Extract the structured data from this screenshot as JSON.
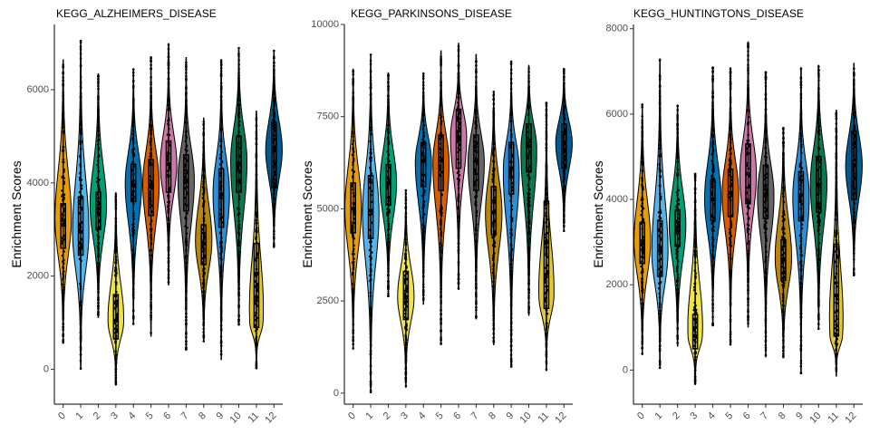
{
  "palette": [
    "#E69F00",
    "#56B4E9",
    "#009E73",
    "#F0E442",
    "#0072B2",
    "#D55E00",
    "#CC79A7",
    "#666666",
    "#B8860B",
    "#2B8FD6",
    "#0A7A55",
    "#E0C83A",
    "#005A8C"
  ],
  "chart_data": [
    {
      "type": "violin",
      "title": "KEGG_ALZHEIMERS_DISEASE",
      "xlabel": "",
      "ylabel": "Enrichment Scores",
      "categories": [
        "0",
        "1",
        "2",
        "3",
        "4",
        "5",
        "6",
        "7",
        "8",
        "9",
        "10",
        "11",
        "12"
      ],
      "ylim": [
        -750,
        7400
      ],
      "yticks": [
        0,
        2000,
        4000,
        6000
      ],
      "ytick_labels": [
        "0",
        "2000",
        "4000",
        "6000"
      ],
      "grid": false,
      "legend": "none",
      "series": [
        {
          "min": 550,
          "max": 6650,
          "q1": 2600,
          "median": 3100,
          "q3": 3550,
          "mode": 3200,
          "spread": 0.3
        },
        {
          "min": 0,
          "max": 7050,
          "q1": 2450,
          "median": 2950,
          "q3": 3700,
          "mode": 2900,
          "spread": 0.28
        },
        {
          "min": 1100,
          "max": 6350,
          "q1": 3000,
          "median": 3450,
          "q3": 3800,
          "mode": 3500,
          "spread": 0.3
        },
        {
          "min": -350,
          "max": 3800,
          "q1": 650,
          "median": 1050,
          "q3": 1600,
          "mode": 1000,
          "spread": 0.28
        },
        {
          "min": 950,
          "max": 6450,
          "q1": 3600,
          "median": 3950,
          "q3": 4400,
          "mode": 4000,
          "spread": 0.28
        },
        {
          "min": 700,
          "max": 6700,
          "q1": 3300,
          "median": 3950,
          "q3": 4500,
          "mode": 4000,
          "spread": 0.26
        },
        {
          "min": 1800,
          "max": 7000,
          "q1": 3800,
          "median": 4400,
          "q3": 4900,
          "mode": 4400,
          "spread": 0.26
        },
        {
          "min": 400,
          "max": 6700,
          "q1": 3400,
          "median": 4050,
          "q3": 4600,
          "mode": 4100,
          "spread": 0.26
        },
        {
          "min": 600,
          "max": 5400,
          "q1": 2250,
          "median": 2700,
          "q3": 3100,
          "mode": 2750,
          "spread": 0.3
        },
        {
          "min": 200,
          "max": 6650,
          "q1": 3050,
          "median": 3750,
          "q3": 4300,
          "mode": 3800,
          "spread": 0.26
        },
        {
          "min": 950,
          "max": 6900,
          "q1": 3800,
          "median": 4400,
          "q3": 5000,
          "mode": 4500,
          "spread": 0.3
        },
        {
          "min": 0,
          "max": 5550,
          "q1": 900,
          "median": 2050,
          "q3": 2700,
          "mode": 1000,
          "spread": 0.26
        },
        {
          "min": 2600,
          "max": 6850,
          "q1": 3900,
          "median": 4700,
          "q3": 5300,
          "mode": 4700,
          "spread": 0.3
        }
      ]
    },
    {
      "type": "violin",
      "title": "KEGG_PARKINSONS_DISEASE",
      "xlabel": "",
      "ylabel": "Enrichment Scores",
      "categories": [
        "0",
        "1",
        "2",
        "3",
        "4",
        "5",
        "6",
        "7",
        "8",
        "9",
        "10",
        "11",
        "12"
      ],
      "ylim": [
        -300,
        10000
      ],
      "yticks": [
        0,
        2500,
        5000,
        7500,
        10000
      ],
      "ytick_labels": [
        "0",
        "2500",
        "5000",
        "7500",
        "10000"
      ],
      "grid": false,
      "legend": "none",
      "series": [
        {
          "min": 1200,
          "max": 8800,
          "q1": 4350,
          "median": 5000,
          "q3": 5700,
          "mode": 5000,
          "spread": 0.3
        },
        {
          "min": 0,
          "max": 9200,
          "q1": 4200,
          "median": 4950,
          "q3": 5900,
          "mode": 4900,
          "spread": 0.28
        },
        {
          "min": 2600,
          "max": 8700,
          "q1": 5100,
          "median": 5700,
          "q3": 6200,
          "mode": 5700,
          "spread": 0.3
        },
        {
          "min": 150,
          "max": 5500,
          "q1": 2000,
          "median": 2600,
          "q3": 3300,
          "mode": 2600,
          "spread": 0.28
        },
        {
          "min": 2400,
          "max": 8700,
          "q1": 5600,
          "median": 6300,
          "q3": 6800,
          "mode": 6300,
          "spread": 0.28
        },
        {
          "min": 1300,
          "max": 9300,
          "q1": 5500,
          "median": 6300,
          "q3": 7000,
          "mode": 6300,
          "spread": 0.26
        },
        {
          "min": 2800,
          "max": 9500,
          "q1": 6100,
          "median": 6950,
          "q3": 7700,
          "mode": 7000,
          "spread": 0.26
        },
        {
          "min": 2000,
          "max": 9200,
          "q1": 5500,
          "median": 6300,
          "q3": 7000,
          "mode": 6300,
          "spread": 0.26
        },
        {
          "min": 1300,
          "max": 8200,
          "q1": 4300,
          "median": 4900,
          "q3": 5600,
          "mode": 4900,
          "spread": 0.3
        },
        {
          "min": 700,
          "max": 9000,
          "q1": 5400,
          "median": 6100,
          "q3": 6800,
          "mode": 6100,
          "spread": 0.26
        },
        {
          "min": 2100,
          "max": 8900,
          "q1": 6000,
          "median": 6700,
          "q3": 7300,
          "mode": 6700,
          "spread": 0.3
        },
        {
          "min": 600,
          "max": 7900,
          "q1": 2300,
          "median": 4100,
          "q3": 5200,
          "mode": 2600,
          "spread": 0.26
        },
        {
          "min": 4400,
          "max": 8800,
          "q1": 6100,
          "median": 6800,
          "q3": 7300,
          "mode": 6800,
          "spread": 0.3
        }
      ]
    },
    {
      "type": "violin",
      "title": "KEGG_HUNTINGTONS_DISEASE",
      "xlabel": "",
      "ylabel": "Enrichment Scores",
      "categories": [
        "0",
        "1",
        "2",
        "3",
        "4",
        "5",
        "6",
        "7",
        "8",
        "9",
        "10",
        "11",
        "12"
      ],
      "ylim": [
        -800,
        8100
      ],
      "yticks": [
        0,
        2000,
        4000,
        6000,
        8000
      ],
      "ytick_labels": [
        "0",
        "2000",
        "4000",
        "6000",
        "8000"
      ],
      "grid": false,
      "legend": "none",
      "series": [
        {
          "min": 350,
          "max": 6250,
          "q1": 2500,
          "median": 2950,
          "q3": 3450,
          "mode": 3000,
          "spread": 0.3
        },
        {
          "min": 50,
          "max": 7300,
          "q1": 2200,
          "median": 2800,
          "q3": 3500,
          "mode": 2700,
          "spread": 0.28
        },
        {
          "min": 550,
          "max": 6200,
          "q1": 2900,
          "median": 3350,
          "q3": 3750,
          "mode": 3400,
          "spread": 0.3
        },
        {
          "min": -350,
          "max": 4600,
          "q1": 500,
          "median": 800,
          "q3": 1300,
          "mode": 800,
          "spread": 0.28
        },
        {
          "min": 1050,
          "max": 7100,
          "q1": 3500,
          "median": 4000,
          "q3": 4450,
          "mode": 4000,
          "spread": 0.28
        },
        {
          "min": 600,
          "max": 7100,
          "q1": 3600,
          "median": 4150,
          "q3": 4700,
          "mode": 4150,
          "spread": 0.26
        },
        {
          "min": 1000,
          "max": 7700,
          "q1": 3900,
          "median": 4600,
          "q3": 5300,
          "mode": 4600,
          "spread": 0.26
        },
        {
          "min": 300,
          "max": 7000,
          "q1": 3550,
          "median": 4100,
          "q3": 4800,
          "mode": 4100,
          "spread": 0.26
        },
        {
          "min": 300,
          "max": 5700,
          "q1": 2100,
          "median": 2600,
          "q3": 3050,
          "mode": 2600,
          "spread": 0.3
        },
        {
          "min": -100,
          "max": 7100,
          "q1": 3500,
          "median": 4100,
          "q3": 4650,
          "mode": 4100,
          "spread": 0.26
        },
        {
          "min": 950,
          "max": 7150,
          "q1": 3700,
          "median": 4350,
          "q3": 5000,
          "mode": 4400,
          "spread": 0.3
        },
        {
          "min": -150,
          "max": 6100,
          "q1": 800,
          "median": 1750,
          "q3": 2950,
          "mode": 800,
          "spread": 0.26
        },
        {
          "min": 2200,
          "max": 7200,
          "q1": 4000,
          "median": 4800,
          "q3": 5600,
          "mode": 4800,
          "spread": 0.3
        }
      ]
    }
  ]
}
